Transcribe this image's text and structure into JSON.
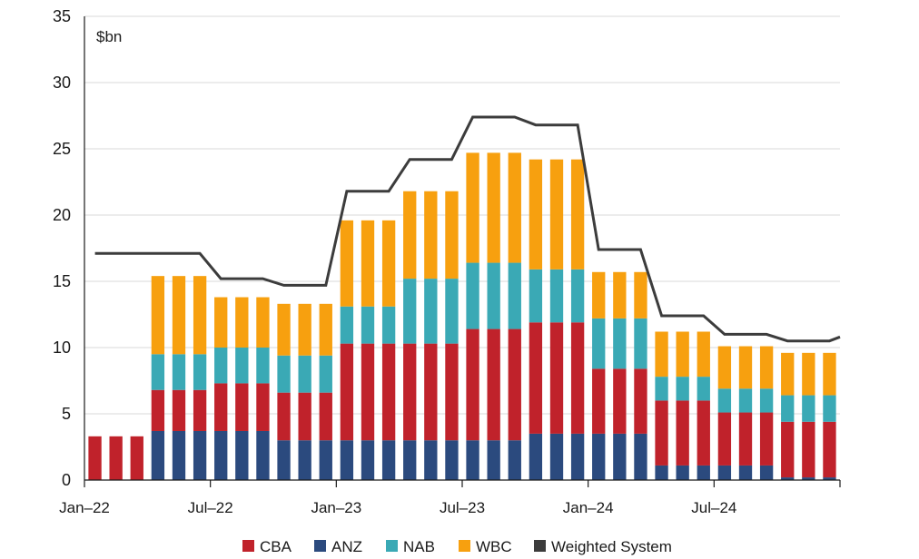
{
  "chart_data": {
    "type": "bar",
    "stacked": true,
    "unit_label": "$bn",
    "ylim": [
      0,
      35
    ],
    "yticks": [
      0,
      5,
      10,
      15,
      20,
      25,
      30,
      35
    ],
    "grid": true,
    "legend_position": "bottom",
    "x_tick_labels": [
      "Jan–22",
      "Jul–22",
      "Jan–23",
      "Jul–23",
      "Jan–24",
      "Jul–24"
    ],
    "x_tick_months": [
      "2022-01",
      "2022-07",
      "2023-01",
      "2023-07",
      "2024-01",
      "2024-07"
    ],
    "x_end_month": "2025-01",
    "bar_months": [
      "2022-01",
      "2022-02",
      "2022-03",
      "2022-04",
      "2022-05",
      "2022-06",
      "2022-07",
      "2022-08",
      "2022-09",
      "2022-10",
      "2022-11",
      "2022-12",
      "2023-01",
      "2023-02",
      "2023-03",
      "2023-04",
      "2023-05",
      "2023-06",
      "2023-07",
      "2023-08",
      "2023-09",
      "2023-10",
      "2023-11",
      "2023-12",
      "2024-01",
      "2024-02",
      "2024-03",
      "2024-04",
      "2024-05",
      "2024-06",
      "2024-07",
      "2024-08",
      "2024-09",
      "2024-10",
      "2024-11",
      "2024-12"
    ],
    "series": [
      {
        "name": "ANZ",
        "color": "#2b4a7e",
        "values": [
          0,
          0,
          0,
          3.7,
          3.7,
          3.7,
          3.7,
          3.7,
          3.7,
          3.0,
          3.0,
          3.0,
          3.0,
          3.0,
          3.0,
          3.0,
          3.0,
          3.0,
          3.0,
          3.0,
          3.0,
          3.5,
          3.5,
          3.5,
          3.5,
          3.5,
          3.5,
          1.1,
          1.1,
          1.1,
          1.1,
          1.1,
          1.1,
          0.2,
          0.2,
          0.2
        ]
      },
      {
        "name": "CBA",
        "color": "#c0222b",
        "values": [
          3.3,
          3.3,
          3.3,
          3.1,
          3.1,
          3.1,
          3.6,
          3.6,
          3.6,
          3.6,
          3.6,
          3.6,
          7.3,
          7.3,
          7.3,
          7.3,
          7.3,
          7.3,
          8.4,
          8.4,
          8.4,
          8.4,
          8.4,
          8.4,
          4.9,
          4.9,
          4.9,
          4.9,
          4.9,
          4.9,
          4.0,
          4.0,
          4.0,
          4.2,
          4.2,
          4.2
        ]
      },
      {
        "name": "NAB",
        "color": "#3aa9b5",
        "values": [
          0,
          0,
          0,
          2.7,
          2.7,
          2.7,
          2.7,
          2.7,
          2.7,
          2.8,
          2.8,
          2.8,
          2.8,
          2.8,
          2.8,
          4.9,
          4.9,
          4.9,
          5.0,
          5.0,
          5.0,
          4.0,
          4.0,
          4.0,
          3.8,
          3.8,
          3.8,
          1.8,
          1.8,
          1.8,
          1.8,
          1.8,
          1.8,
          2.0,
          2.0,
          2.0
        ]
      },
      {
        "name": "WBC",
        "color": "#f7a00f",
        "values": [
          0,
          0,
          0,
          5.9,
          5.9,
          5.9,
          3.8,
          3.8,
          3.8,
          3.9,
          3.9,
          3.9,
          6.5,
          6.5,
          6.5,
          6.6,
          6.6,
          6.6,
          8.3,
          8.3,
          8.3,
          8.3,
          8.3,
          8.3,
          3.5,
          3.5,
          3.5,
          3.4,
          3.4,
          3.4,
          3.2,
          3.2,
          3.2,
          3.2,
          3.2,
          3.2
        ]
      }
    ],
    "line_series": {
      "name": "Weighted System",
      "color": "#3c3c3c",
      "months": [
        "2022-01",
        "2022-02",
        "2022-03",
        "2022-04",
        "2022-05",
        "2022-06",
        "2022-07",
        "2022-08",
        "2022-09",
        "2022-10",
        "2022-11",
        "2022-12",
        "2023-01",
        "2023-02",
        "2023-03",
        "2023-04",
        "2023-05",
        "2023-06",
        "2023-07",
        "2023-08",
        "2023-09",
        "2023-10",
        "2023-11",
        "2023-12",
        "2024-01",
        "2024-02",
        "2024-03",
        "2024-04",
        "2024-05",
        "2024-06",
        "2024-07",
        "2024-08",
        "2024-09",
        "2024-10",
        "2024-11",
        "2024-12",
        "2025-01"
      ],
      "values": [
        17.1,
        17.1,
        17.1,
        17.1,
        17.1,
        17.1,
        15.2,
        15.2,
        15.2,
        14.7,
        14.7,
        14.7,
        21.8,
        21.8,
        21.8,
        24.2,
        24.2,
        24.2,
        27.4,
        27.4,
        27.4,
        26.8,
        26.8,
        26.8,
        17.4,
        17.4,
        17.4,
        12.4,
        12.4,
        12.4,
        11.0,
        11.0,
        11.0,
        10.5,
        10.5,
        10.5,
        10.8
      ]
    },
    "legend": [
      {
        "name": "CBA",
        "color": "#c0222b"
      },
      {
        "name": "ANZ",
        "color": "#2b4a7e"
      },
      {
        "name": "NAB",
        "color": "#3aa9b5"
      },
      {
        "name": "WBC",
        "color": "#f7a00f"
      },
      {
        "name": "Weighted System",
        "color": "#3c3c3c"
      }
    ]
  }
}
